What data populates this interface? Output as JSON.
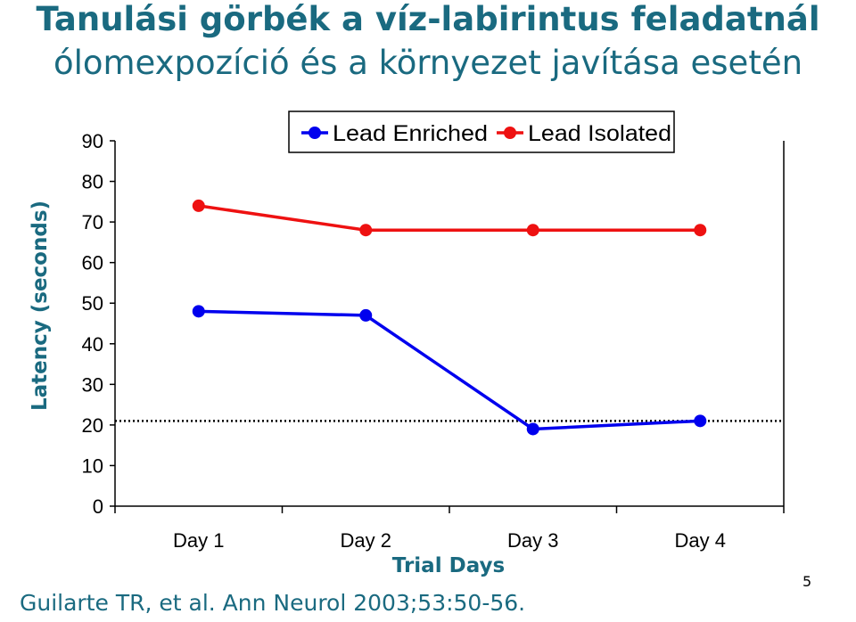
{
  "slide": {
    "title_line1": "Tanulási görbék a víz-labirintus feladatnál",
    "title_line2": "ólomexpozíció és a környezet javítása esetén",
    "citation": "Guilarte TR, et al. Ann Neurol 2003;53:50-56.",
    "page_number": "5"
  },
  "chart_data": {
    "type": "line",
    "title": "",
    "xlabel": "Trial Days",
    "ylabel": "Latency (seconds)",
    "categories": [
      "Day 1",
      "Day 2",
      "Day 3",
      "Day 4"
    ],
    "ylim": [
      0,
      90
    ],
    "yticks": [
      0,
      10,
      20,
      30,
      40,
      50,
      60,
      70,
      80,
      90
    ],
    "reference_line": {
      "y": 21,
      "style": "dotted",
      "color": "#000000"
    },
    "grid": false,
    "legend_position": "top-right",
    "series": [
      {
        "name": "Lead Enriched",
        "color": "#0000ee",
        "values": [
          48,
          47,
          19,
          21
        ]
      },
      {
        "name": "Lead Isolated",
        "color": "#ee1111",
        "values": [
          74,
          68,
          68,
          68
        ]
      }
    ]
  }
}
